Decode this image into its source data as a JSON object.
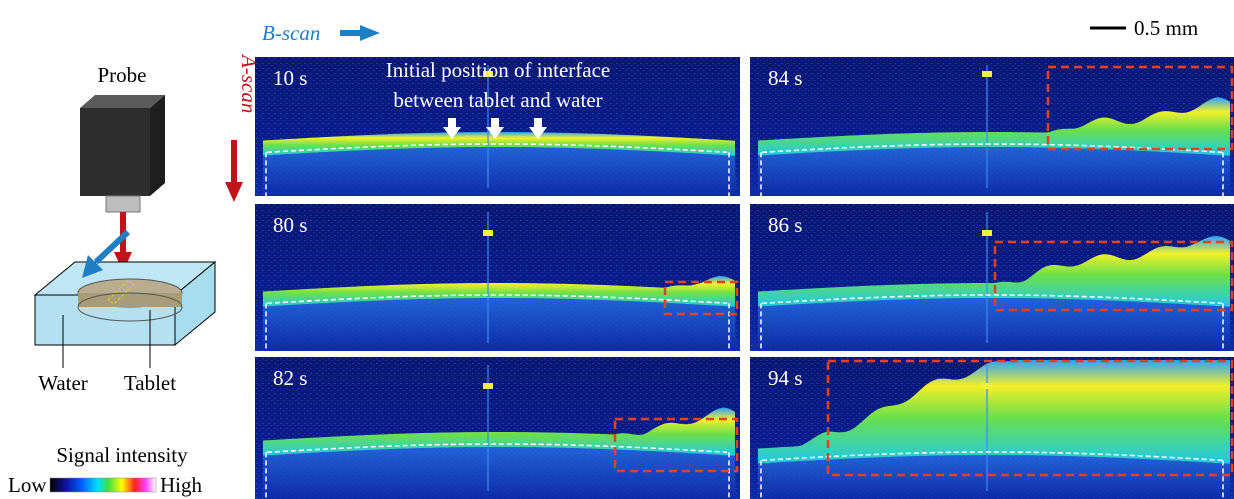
{
  "header": {
    "b_scan": "B-scan",
    "a_scan": "A-scan",
    "scale_bar": "0.5 mm"
  },
  "schematic": {
    "probe": "Probe",
    "water": "Water",
    "tablet": "Tablet"
  },
  "colorbar": {
    "title": "Signal intensity",
    "low": "Low",
    "high": "High"
  },
  "annotation": {
    "lines": [
      "Initial position of interface",
      "between tablet and water"
    ]
  },
  "panels": [
    {
      "label": "10 s"
    },
    {
      "label": "80 s"
    },
    {
      "label": "82 s"
    },
    {
      "label": "84 s"
    },
    {
      "label": "86 s"
    },
    {
      "label": "94 s"
    }
  ]
}
